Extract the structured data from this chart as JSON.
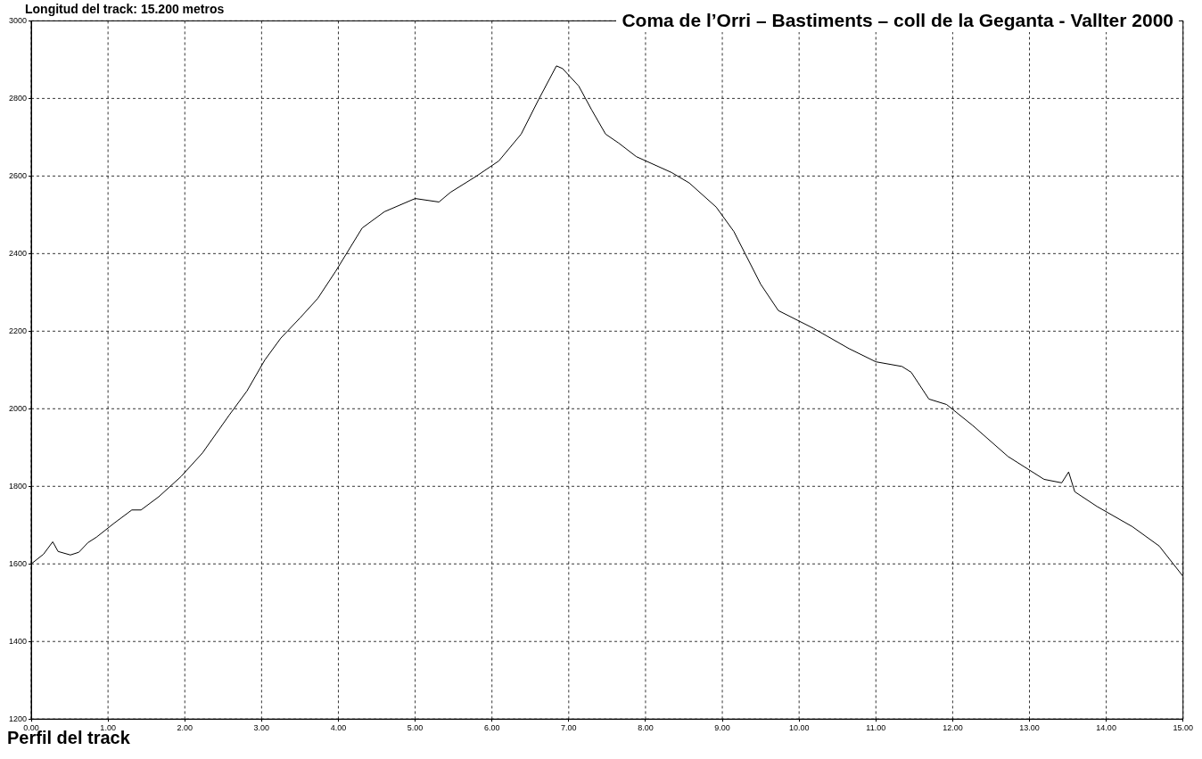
{
  "chart_data": {
    "type": "line",
    "title": "Coma de l’Orri – Bastiments – coll de la Geganta - Vallter 2000",
    "annotations": [
      "Longitud del track: 15.200 metros",
      "Perfil del track"
    ],
    "x": [
      0,
      0.16,
      0.28,
      0.35,
      0.51,
      0.62,
      0.74,
      0.85,
      1.08,
      1.31,
      1.43,
      1.66,
      1.95,
      2.23,
      2.58,
      2.81,
      3.04,
      3.25,
      3.5,
      3.73,
      3.96,
      4.31,
      4.6,
      5.0,
      5.31,
      5.46,
      5.8,
      6.09,
      6.38,
      6.61,
      6.84,
      6.92,
      7.13,
      7.3,
      7.48,
      7.65,
      7.88,
      8.34,
      8.57,
      8.92,
      9.15,
      9.5,
      9.73,
      10.19,
      10.65,
      11.0,
      11.34,
      11.46,
      11.69,
      11.92,
      12.26,
      12.72,
      13.19,
      13.42,
      13.51,
      13.59,
      13.88,
      14.34,
      14.69,
      15.0
    ],
    "series": [
      {
        "color": "#000000",
        "values": [
          1600,
          1625,
          1657,
          1632,
          1623,
          1630,
          1655,
          1669,
          1705,
          1739,
          1739,
          1773,
          1825,
          1886,
          1984,
          2046,
          2125,
          2182,
          2234,
          2284,
          2353,
          2466,
          2508,
          2542,
          2533,
          2558,
          2600,
          2639,
          2708,
          2798,
          2884,
          2877,
          2832,
          2770,
          2708,
          2685,
          2650,
          2609,
          2582,
          2520,
          2457,
          2321,
          2253,
          2207,
          2155,
          2121,
          2109,
          2094,
          2025,
          2011,
          1957,
          1877,
          1818,
          1809,
          1837,
          1786,
          1748,
          1696,
          1646,
          1568
        ]
      }
    ],
    "xlim": [
      0,
      15
    ],
    "xticks": [
      {
        "value": 0,
        "label": "0.00"
      },
      {
        "value": 1,
        "label": "1.00"
      },
      {
        "value": 2,
        "label": "2.00"
      },
      {
        "value": 3,
        "label": "3.00"
      },
      {
        "value": 4,
        "label": "4.00"
      },
      {
        "value": 5,
        "label": "5.00"
      },
      {
        "value": 6,
        "label": "6.00"
      },
      {
        "value": 7,
        "label": "7.00"
      },
      {
        "value": 8,
        "label": "8.00"
      },
      {
        "value": 9,
        "label": "9.00"
      },
      {
        "value": 10,
        "label": "10.00"
      },
      {
        "value": 11,
        "label": "11.00"
      },
      {
        "value": 12,
        "label": "12.00"
      },
      {
        "value": 13,
        "label": "13.00"
      },
      {
        "value": 14,
        "label": "14.00"
      },
      {
        "value": 15,
        "label": "15.00"
      }
    ],
    "ylim": [
      1200,
      3000
    ],
    "yticks": [
      1200,
      1400,
      1600,
      1800,
      2000,
      2200,
      2400,
      2600,
      2800,
      3000
    ],
    "grid": true,
    "legend": false,
    "marker": "none",
    "line_style": "solid"
  }
}
